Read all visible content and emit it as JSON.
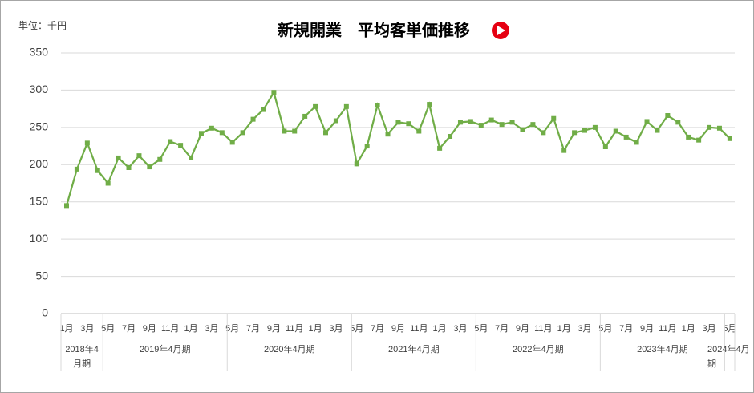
{
  "chart_data": {
    "type": "line",
    "title": "新規開業　平均客単価推移",
    "unit_label": "単位：千円",
    "categories": [
      "1月",
      null,
      "3月",
      null,
      "5月",
      null,
      "7月",
      null,
      "9月",
      null,
      "11月",
      null,
      "1月",
      null,
      "3月",
      null,
      "5月",
      null,
      "7月",
      null,
      "9月",
      null,
      "11月",
      null,
      "1月",
      null,
      "3月",
      null,
      "5月",
      null,
      "7月",
      null,
      "9月",
      null,
      "11月",
      null,
      "1月",
      null,
      "3月",
      null,
      "5月",
      null,
      "7月",
      null,
      "9月",
      null,
      "11月",
      null,
      "1月",
      null,
      "3月",
      null,
      "5月",
      null,
      "7月",
      null,
      "9月",
      null,
      "11月",
      null,
      "1月",
      null,
      "3月",
      null,
      "5月"
    ],
    "periods": [
      "2018年4月期",
      "2019年4月期",
      "2020年4月期",
      "2021年4月期",
      "2022年4月期",
      "2023年4月期",
      "2024年4月期"
    ],
    "series": [
      {
        "name": "平均客単価",
        "color": "#70ad47",
        "values": [
          145,
          194,
          229,
          192,
          175,
          209,
          196,
          212,
          197,
          207,
          231,
          226,
          209,
          242,
          249,
          243,
          230,
          243,
          261,
          274,
          297,
          245,
          245,
          265,
          278,
          243,
          259,
          278,
          201,
          225,
          280,
          241,
          257,
          255,
          245,
          281,
          222,
          238,
          257,
          258,
          253,
          260,
          254,
          257,
          247,
          254,
          243,
          262,
          219,
          243,
          246,
          250,
          224,
          245,
          237,
          230,
          258,
          246,
          266,
          257,
          237,
          233,
          250,
          249,
          235
        ]
      }
    ],
    "ylim": [
      0,
      350
    ],
    "yticks": [
      0,
      50,
      100,
      150,
      200,
      250,
      300,
      350
    ],
    "grid": true
  }
}
